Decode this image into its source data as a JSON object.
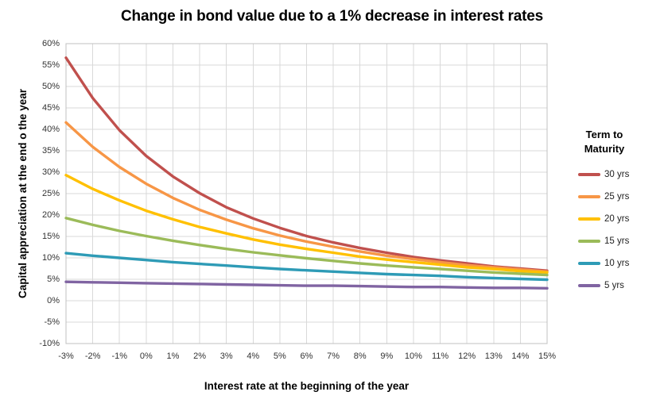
{
  "chart_data": {
    "type": "line",
    "title": "Change in bond value due to a 1% decrease in interest rates",
    "xlabel": "Interest rate at the beginning of the year",
    "ylabel": "Capital appreciation at the end o the year",
    "legend_title": "Term to Maturity",
    "legend_position": "right",
    "grid": true,
    "grid_color": "#d9d9d9",
    "border_color": "#c0c0c0",
    "x_tick_labels": [
      "-3%",
      "-2%",
      "-1%",
      "0%",
      "1%",
      "2%",
      "3%",
      "4%",
      "5%",
      "6%",
      "7%",
      "8%",
      "9%",
      "10%",
      "11%",
      "12%",
      "13%",
      "14%",
      "15%"
    ],
    "y_tick_labels": [
      "60%",
      "55%",
      "50%",
      "45%",
      "40%",
      "35%",
      "30%",
      "25%",
      "20%",
      "15%",
      "10%",
      "5%",
      "0%",
      "-5%",
      "-10%"
    ],
    "ylim": [
      -10,
      60
    ],
    "y_tick_step": 5,
    "unit": "percent",
    "series": [
      {
        "name": "30 yrs",
        "color": "#C0504D",
        "values": [
          56.7,
          47.3,
          39.8,
          33.8,
          29.0,
          25.1,
          21.8,
          19.2,
          17.0,
          15.1,
          13.6,
          12.3,
          11.2,
          10.2,
          9.4,
          8.7,
          8.0,
          7.5,
          7.0
        ]
      },
      {
        "name": "25 yrs",
        "color": "#F79646",
        "values": [
          41.6,
          35.9,
          31.2,
          27.3,
          24.0,
          21.2,
          18.9,
          16.9,
          15.2,
          13.8,
          12.6,
          11.5,
          10.5,
          9.7,
          9.0,
          8.3,
          7.8,
          7.3,
          6.8
        ]
      },
      {
        "name": "20 yrs",
        "color": "#FFC000",
        "values": [
          29.3,
          26.1,
          23.4,
          21.0,
          19.0,
          17.2,
          15.7,
          14.3,
          13.1,
          12.1,
          11.2,
          10.3,
          9.6,
          9.0,
          8.4,
          7.8,
          7.4,
          6.9,
          6.6
        ]
      },
      {
        "name": "15 yrs",
        "color": "#9BBB59",
        "values": [
          19.3,
          17.7,
          16.3,
          15.1,
          14.0,
          13.0,
          12.1,
          11.3,
          10.6,
          9.9,
          9.3,
          8.7,
          8.2,
          7.8,
          7.4,
          7.0,
          6.6,
          6.3,
          6.0
        ]
      },
      {
        "name": "10 yrs",
        "color": "#2E9BB6",
        "values": [
          11.1,
          10.5,
          10.0,
          9.5,
          9.0,
          8.6,
          8.2,
          7.8,
          7.4,
          7.1,
          6.8,
          6.5,
          6.2,
          6.0,
          5.8,
          5.5,
          5.3,
          5.1,
          4.9
        ]
      },
      {
        "name": "5 yrs",
        "color": "#8064A2",
        "values": [
          4.4,
          4.3,
          4.2,
          4.1,
          4.0,
          3.9,
          3.8,
          3.7,
          3.6,
          3.5,
          3.5,
          3.4,
          3.3,
          3.2,
          3.2,
          3.1,
          3.0,
          3.0,
          2.9
        ]
      }
    ]
  }
}
